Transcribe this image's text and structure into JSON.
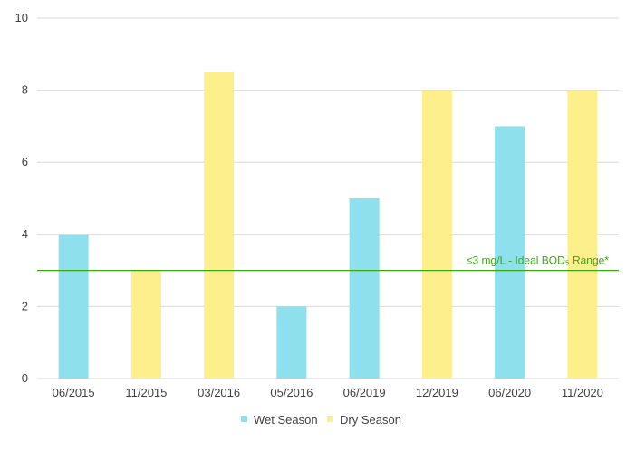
{
  "chart_data": {
    "type": "bar",
    "categories": [
      "06/2015",
      "11/2015",
      "03/2016",
      "05/2016",
      "06/2019",
      "12/2019",
      "06/2020",
      "11/2020"
    ],
    "values": [
      4,
      3,
      8.5,
      2,
      5,
      8,
      7,
      8
    ],
    "season": [
      "Wet Season",
      "Dry Season",
      "Dry Season",
      "Wet Season",
      "Wet Season",
      "Dry Season",
      "Wet Season",
      "Dry Season"
    ],
    "series": [
      {
        "name": "Wet Season",
        "color": "#8ee0ec"
      },
      {
        "name": "Dry Season",
        "color": "#fdef8c"
      }
    ],
    "ylim": [
      0,
      10
    ],
    "yticks": [
      0,
      2,
      4,
      6,
      8,
      10
    ],
    "grid": true,
    "legend_position": "bottom",
    "reference_line": {
      "value": 3,
      "label": "≤3 mg/L - Ideal BOD₅ Range*",
      "color": "#3aa614"
    }
  }
}
